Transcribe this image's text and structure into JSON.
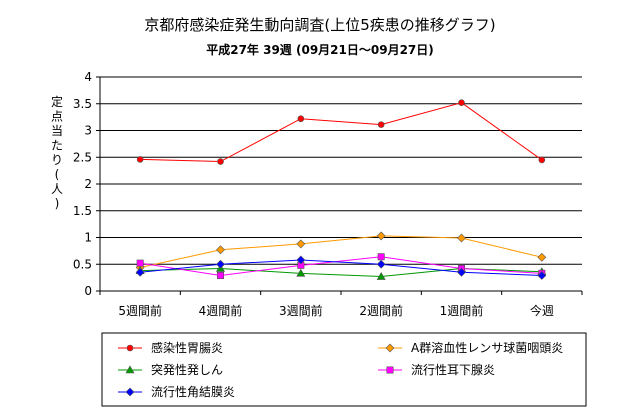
{
  "chart_data": {
    "type": "line",
    "title": "京都府感染症発生動向調査(上位5疾患の推移グラフ)",
    "subtitle": "平成27年 39週 (09月21日～09月27日)",
    "ylabel": "定点当たり(人)",
    "xlabel": "",
    "categories": [
      "5週間前",
      "4週間前",
      "3週間前",
      "2週間前",
      "1週間前",
      "今週"
    ],
    "ylim": [
      0,
      4
    ],
    "yticks": [
      "0",
      "0.5",
      "1",
      "1.5",
      "2",
      "2.5",
      "3",
      "3.5",
      "4"
    ],
    "grid": "horizontal",
    "legend_position": "bottom",
    "series": [
      {
        "name": "感染性胃腸炎",
        "values": [
          2.46,
          2.42,
          3.22,
          3.11,
          3.52,
          2.45
        ],
        "color": "#ff0000",
        "marker": "circle"
      },
      {
        "name": "A群溶血性レンサ球菌咽頭炎",
        "values": [
          0.44,
          0.77,
          0.88,
          1.03,
          0.99,
          0.63
        ],
        "color": "#ff9900",
        "marker": "diamond"
      },
      {
        "name": "突発性発しん",
        "values": [
          0.38,
          0.42,
          0.33,
          0.27,
          0.42,
          0.36
        ],
        "color": "#009900",
        "marker": "triangle"
      },
      {
        "name": "流行性耳下腺炎",
        "values": [
          0.52,
          0.29,
          0.48,
          0.64,
          0.42,
          0.33
        ],
        "color": "#ff00ff",
        "marker": "square"
      },
      {
        "name": "流行性角結膜炎",
        "values": [
          0.35,
          0.5,
          0.58,
          0.5,
          0.35,
          0.29
        ],
        "color": "#0000ff",
        "marker": "diamond"
      }
    ]
  }
}
